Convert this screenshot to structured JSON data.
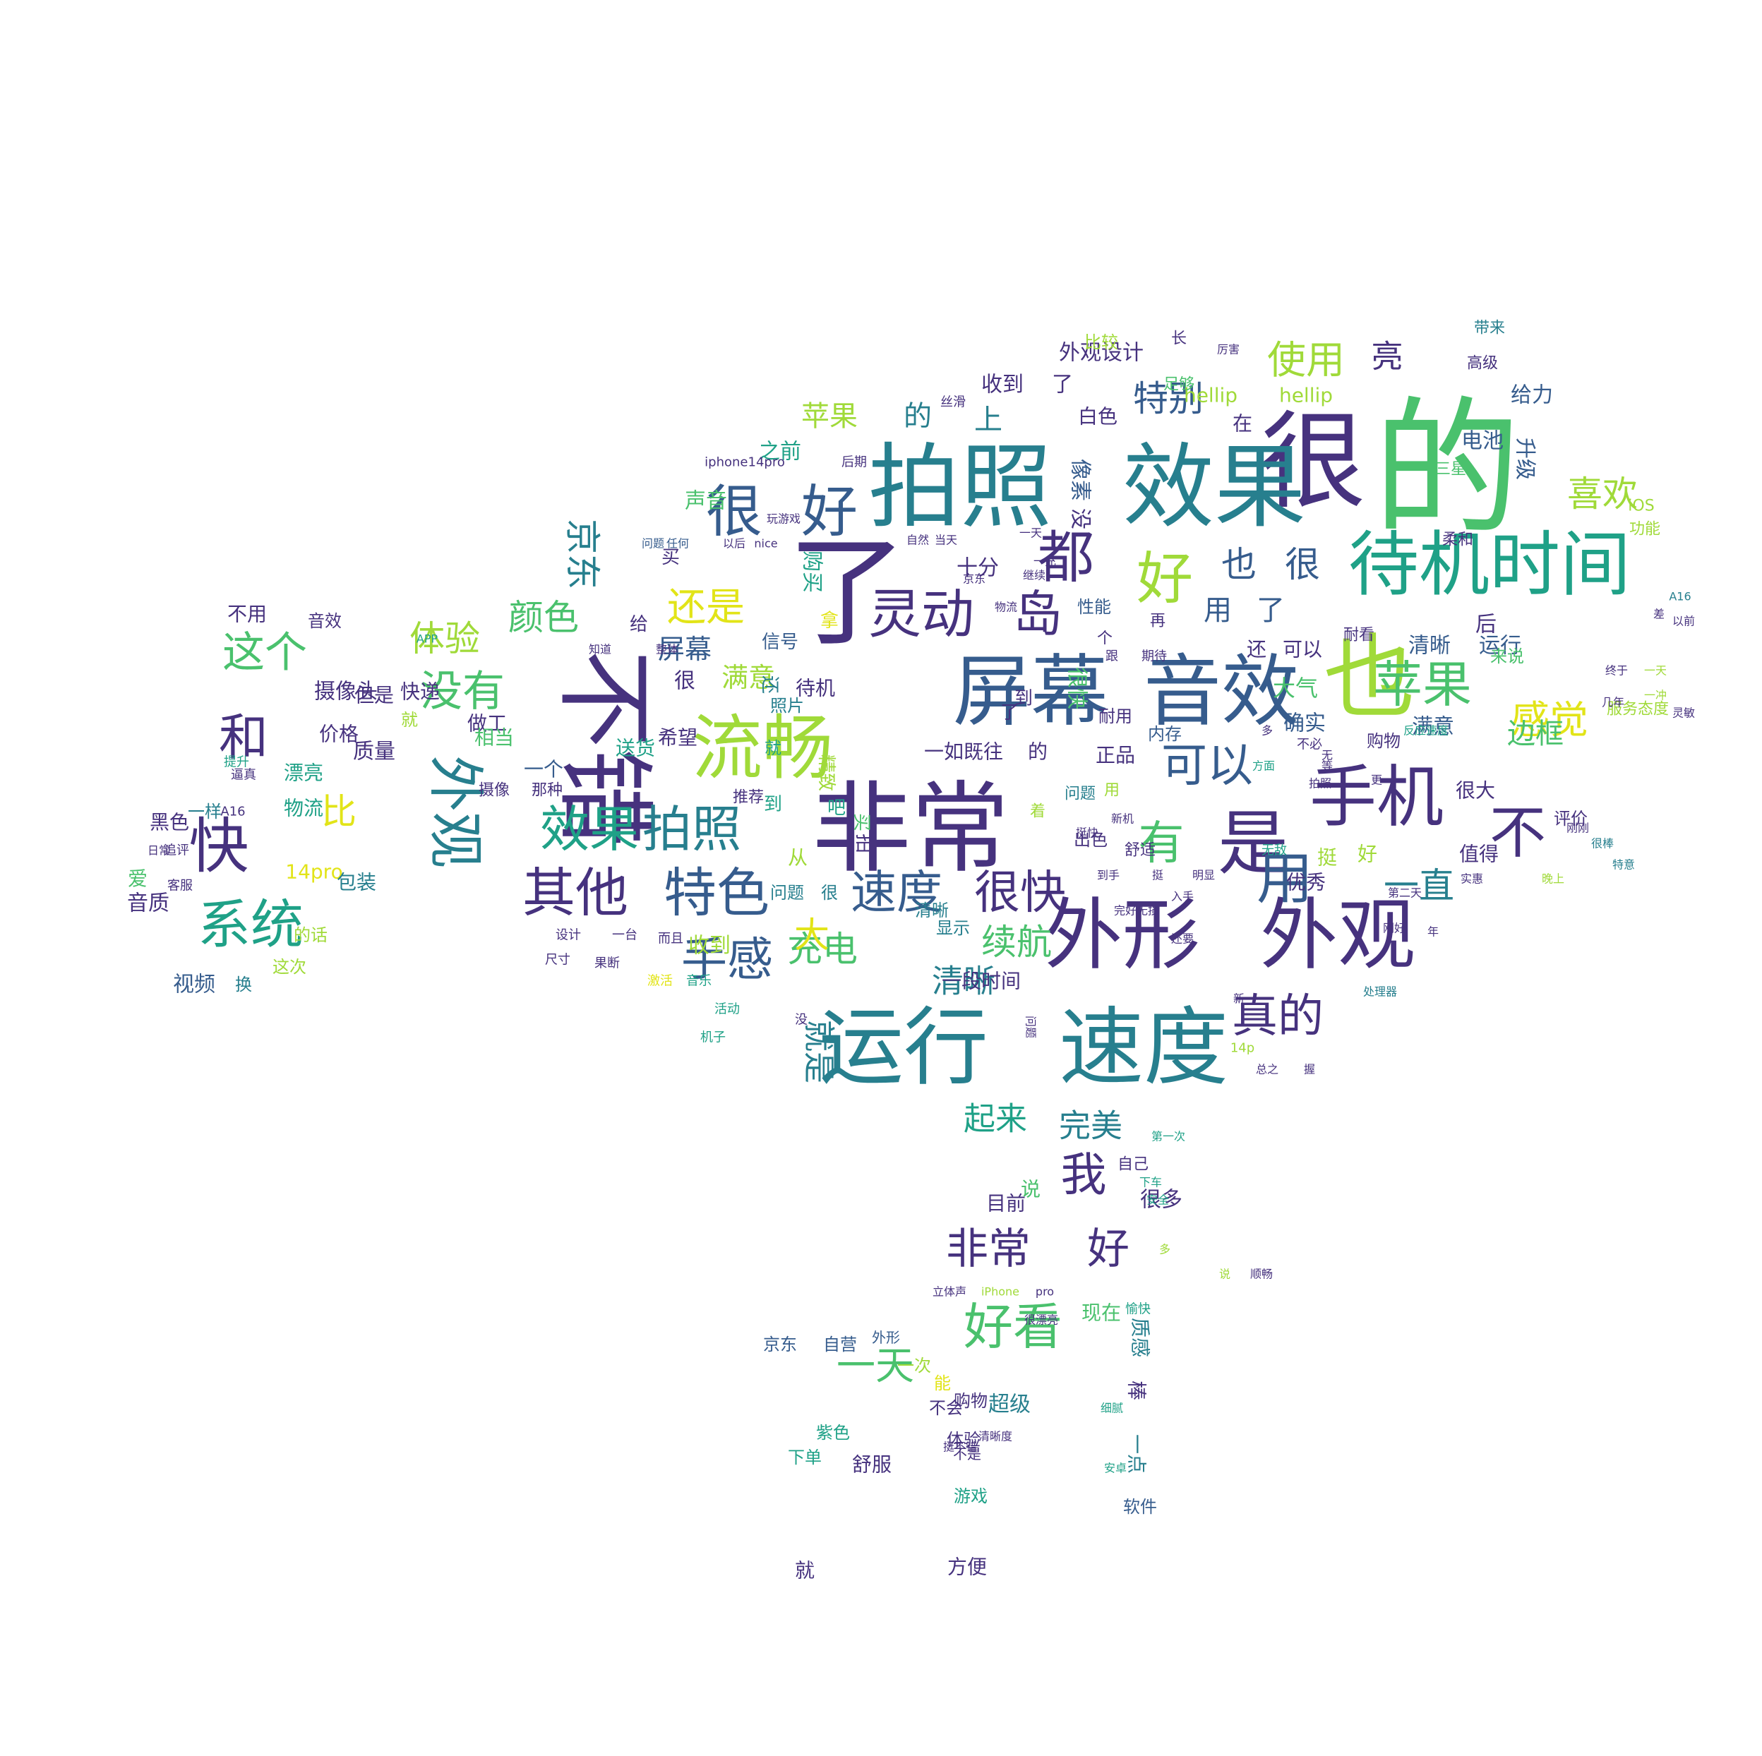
{
  "palette": {
    "dark_purple": "#46327e",
    "indigo": "#365c8d",
    "blue": "#277f8e",
    "teal": "#1fa187",
    "green": "#4ac16d",
    "lime": "#a0da39",
    "yellow": "#e2e418"
  },
  "words": [
    {
      "text": "的",
      "color": "#4ac16d"
    },
    {
      "text": "很",
      "color": "#46327e"
    },
    {
      "text": "效果",
      "color": "#277f8e"
    },
    {
      "text": "拍照",
      "color": "#277f8e"
    },
    {
      "text": "非常",
      "color": "#46327e"
    },
    {
      "text": "了",
      "color": "#46327e"
    },
    {
      "text": "不错",
      "color": "#46327e"
    },
    {
      "text": "也",
      "color": "#a0da39"
    },
    {
      "text": "屏幕",
      "color": "#365c8d"
    },
    {
      "text": "音效",
      "color": "#365c8d"
    },
    {
      "text": "待机时间",
      "color": "#1fa187"
    },
    {
      "text": "外形",
      "color": "#46327e"
    },
    {
      "text": "外观",
      "color": "#46327e"
    },
    {
      "text": "运行",
      "color": "#277f8e"
    },
    {
      "text": "速度",
      "color": "#277f8e"
    },
    {
      "text": "流畅",
      "color": "#a0da39"
    },
    {
      "text": "手机",
      "color": "#46327e"
    },
    {
      "text": "是",
      "color": "#46327e"
    },
    {
      "text": "苹果",
      "color": "#4ac16d"
    },
    {
      "text": "都",
      "color": "#46327e"
    },
    {
      "text": "好",
      "color": "#a0da39"
    },
    {
      "text": "很",
      "color": "#365c8d"
    },
    {
      "text": "好",
      "color": "#365c8d"
    },
    {
      "text": "灵动",
      "color": "#46327e"
    },
    {
      "text": "岛",
      "color": "#46327e"
    },
    {
      "text": "外观",
      "color": "#277f8e"
    },
    {
      "text": "其他",
      "color": "#46327e"
    },
    {
      "text": "特色",
      "color": "#365c8d"
    },
    {
      "text": "效果",
      "color": "#1fa187"
    },
    {
      "text": "拍照",
      "color": "#277f8e"
    },
    {
      "text": "快",
      "color": "#46327e"
    },
    {
      "text": "系统",
      "color": "#1fa187"
    },
    {
      "text": "和",
      "color": "#46327e"
    },
    {
      "text": "没有",
      "color": "#4ac16d"
    },
    {
      "text": "可以",
      "color": "#365c8d"
    },
    {
      "text": "有",
      "color": "#4ac16d"
    },
    {
      "text": "用",
      "color": "#365c8d"
    },
    {
      "text": "不",
      "color": "#46327e"
    },
    {
      "text": "速度",
      "color": "#365c8d"
    },
    {
      "text": "很快",
      "color": "#46327e"
    },
    {
      "text": "真的",
      "color": "#46327e"
    },
    {
      "text": "手感",
      "color": "#365c8d"
    },
    {
      "text": "感觉",
      "color": "#e2e418"
    },
    {
      "text": "使用",
      "color": "#a0da39"
    },
    {
      "text": "特别",
      "color": "#365c8d"
    },
    {
      "text": "喜欢",
      "color": "#a0da39"
    },
    {
      "text": "还是",
      "color": "#e2e418"
    },
    {
      "text": "这个",
      "color": "#4ac16d"
    },
    {
      "text": "非常",
      "color": "#46327e"
    },
    {
      "text": "好",
      "color": "#46327e"
    },
    {
      "text": "好看",
      "color": "#4ac16d"
    },
    {
      "text": "一天",
      "color": "#4ac16d"
    },
    {
      "text": "我",
      "color": "#46327e"
    },
    {
      "text": "充电",
      "color": "#4ac16d"
    },
    {
      "text": "续航",
      "color": "#4ac16d"
    },
    {
      "text": "清晰",
      "color": "#277f8e"
    },
    {
      "text": "就是",
      "color": "#277f8e"
    },
    {
      "text": "起来",
      "color": "#1fa187"
    },
    {
      "text": "完美",
      "color": "#277f8e"
    },
    {
      "text": "一直",
      "color": "#277f8e"
    },
    {
      "text": "比",
      "color": "#e2e418"
    },
    {
      "text": "大",
      "color": "#e2e418"
    },
    {
      "text": "颜色",
      "color": "#4ac16d"
    },
    {
      "text": "体验",
      "color": "#a0da39"
    },
    {
      "text": "京东",
      "color": "#277f8e"
    },
    {
      "text": "也",
      "color": "#365c8d"
    },
    {
      "text": "很",
      "color": "#365c8d"
    },
    {
      "text": "亮",
      "color": "#46327e"
    },
    {
      "text": "苹果",
      "color": "#a0da39"
    },
    {
      "text": "的",
      "color": "#277f8e"
    },
    {
      "text": "上",
      "color": "#277f8e"
    },
    {
      "text": "用",
      "color": "#365c8d"
    },
    {
      "text": "了",
      "color": "#365c8d"
    },
    {
      "text": "屏幕",
      "color": "#365c8d"
    },
    {
      "text": "满意",
      "color": "#a0da39"
    },
    {
      "text": "边框",
      "color": "#4ac16d"
    },
    {
      "text": "十分",
      "color": "#46327e"
    },
    {
      "text": "收到",
      "color": "#46327e"
    },
    {
      "text": "了",
      "color": "#46327e"
    },
    {
      "text": "外观设计",
      "color": "#46327e"
    },
    {
      "text": "hellip",
      "color": "#a0da39"
    },
    {
      "text": "hellip",
      "color": "#a0da39"
    },
    {
      "text": "给力",
      "color": "#365c8d"
    },
    {
      "text": "电池",
      "color": "#365c8d"
    },
    {
      "text": "升级",
      "color": "#365c8d"
    },
    {
      "text": "白色",
      "color": "#46327e"
    },
    {
      "text": "在",
      "color": "#46327e"
    },
    {
      "text": "没",
      "color": "#46327e"
    },
    {
      "text": "像素",
      "color": "#365c8d"
    },
    {
      "text": "之前",
      "color": "#1fa187"
    },
    {
      "text": "声音",
      "color": "#4ac16d"
    },
    {
      "text": "购买",
      "color": "#1fa187"
    },
    {
      "text": "清晰",
      "color": "#365c8d"
    },
    {
      "text": "运行",
      "color": "#365c8d"
    },
    {
      "text": "后",
      "color": "#46327e"
    },
    {
      "text": "还",
      "color": "#46327e"
    },
    {
      "text": "可以",
      "color": "#46327e"
    },
    {
      "text": "大气",
      "color": "#4ac16d"
    },
    {
      "text": "确实",
      "color": "#365c8d"
    },
    {
      "text": "正品",
      "color": "#46327e"
    },
    {
      "text": "一如既往",
      "color": "#46327e"
    },
    {
      "text": "的",
      "color": "#46327e"
    },
    {
      "text": "很快",
      "color": "#4ac16d"
    },
    {
      "text": "满意",
      "color": "#365c8d"
    },
    {
      "text": "很",
      "color": "#46327e"
    },
    {
      "text": "待机",
      "color": "#46327e"
    },
    {
      "text": "拍",
      "color": "#46327e"
    },
    {
      "text": "摄像头",
      "color": "#46327e"
    },
    {
      "text": "价格",
      "color": "#46327e"
    },
    {
      "text": "但是",
      "color": "#46327e"
    },
    {
      "text": "质量",
      "color": "#46327e"
    },
    {
      "text": "做工",
      "color": "#46327e"
    },
    {
      "text": "送货",
      "color": "#1fa187"
    },
    {
      "text": "希望",
      "color": "#46327e"
    },
    {
      "text": "漂亮",
      "color": "#1fa187"
    },
    {
      "text": "物流",
      "color": "#1fa187"
    },
    {
      "text": "相当",
      "color": "#4ac16d"
    },
    {
      "text": "一个",
      "color": "#365c8d"
    },
    {
      "text": "黑色",
      "color": "#46327e"
    },
    {
      "text": "一样",
      "color": "#277f8e"
    },
    {
      "text": "爱",
      "color": "#4ac16d"
    },
    {
      "text": "14pro",
      "color": "#e2e418"
    },
    {
      "text": "包装",
      "color": "#277f8e"
    },
    {
      "text": "音质",
      "color": "#46327e"
    },
    {
      "text": "的话",
      "color": "#a0da39"
    },
    {
      "text": "这次",
      "color": "#a0da39"
    },
    {
      "text": "视频",
      "color": "#365c8d"
    },
    {
      "text": "换",
      "color": "#277f8e"
    },
    {
      "text": "不用",
      "color": "#46327e"
    },
    {
      "text": "音效",
      "color": "#46327e"
    },
    {
      "text": "快递",
      "color": "#46327e"
    },
    {
      "text": "就",
      "color": "#a0da39"
    },
    {
      "text": "收到",
      "color": "#a0da39"
    },
    {
      "text": "从",
      "color": "#a0da39"
    },
    {
      "text": "问题",
      "color": "#277f8e"
    },
    {
      "text": "很",
      "color": "#277f8e"
    },
    {
      "text": "清晰",
      "color": "#277f8e"
    },
    {
      "text": "显示",
      "color": "#277f8e"
    },
    {
      "text": "一段时间",
      "color": "#46327e"
    },
    {
      "text": "说",
      "color": "#4ac16d"
    },
    {
      "text": "目前",
      "color": "#46327e"
    },
    {
      "text": "很多",
      "color": "#46327e"
    },
    {
      "text": "现在",
      "color": "#4ac16d"
    },
    {
      "text": "质感",
      "color": "#277f8e"
    },
    {
      "text": "棒",
      "color": "#46327e"
    },
    {
      "text": "一点",
      "color": "#277f8e"
    },
    {
      "text": "超级",
      "color": "#277f8e"
    },
    {
      "text": "舒服",
      "color": "#46327e"
    },
    {
      "text": "就",
      "color": "#46327e"
    },
    {
      "text": "方便",
      "color": "#46327e"
    },
    {
      "text": "优秀",
      "color": "#46327e"
    },
    {
      "text": "挺",
      "color": "#a0da39"
    },
    {
      "text": "好",
      "color": "#a0da39"
    },
    {
      "text": "值得",
      "color": "#46327e"
    },
    {
      "text": "很大",
      "color": "#46327e"
    },
    {
      "text": "评价",
      "color": "#46327e"
    },
    {
      "text": "购物",
      "color": "#46327e"
    },
    {
      "text": "京东",
      "color": "#365c8d"
    },
    {
      "text": "自营",
      "color": "#365c8d"
    },
    {
      "text": "外形",
      "color": "#365c8d"
    },
    {
      "text": "一次",
      "color": "#a0da39"
    },
    {
      "text": "能",
      "color": "#e2e418"
    },
    {
      "text": "不会",
      "color": "#46327e"
    },
    {
      "text": "购物",
      "color": "#46327e"
    },
    {
      "text": "体验",
      "color": "#46327e"
    },
    {
      "text": "不是",
      "color": "#46327e"
    },
    {
      "text": "紫色",
      "color": "#1fa187"
    },
    {
      "text": "下单",
      "color": "#1fa187"
    },
    {
      "text": "游戏",
      "color": "#1fa187"
    },
    {
      "text": "软件",
      "color": "#365c8d"
    },
    {
      "text": "自己",
      "color": "#46327e"
    },
    {
      "text": "出色",
      "color": "#46327e"
    },
    {
      "text": "到",
      "color": "#46327e"
    },
    {
      "text": "了",
      "color": "#46327e"
    },
    {
      "text": "买",
      "color": "#46327e"
    },
    {
      "text": "给",
      "color": "#46327e"
    },
    {
      "text": "拿",
      "color": "#e2e418"
    },
    {
      "text": "信号",
      "color": "#365c8d"
    },
    {
      "text": "照片",
      "color": "#277f8e"
    },
    {
      "text": "还",
      "color": "#277f8e"
    },
    {
      "text": "就",
      "color": "#1fa187"
    },
    {
      "text": "到",
      "color": "#1fa187"
    },
    {
      "text": "吧",
      "color": "#1fa187"
    },
    {
      "text": "买",
      "color": "#4ac16d"
    },
    {
      "text": "精致",
      "color": "#a0da39"
    },
    {
      "text": "推荐",
      "color": "#46327e"
    },
    {
      "text": "摄像",
      "color": "#46327e"
    },
    {
      "text": "那种",
      "color": "#46327e"
    },
    {
      "text": "问题",
      "color": "#277f8e"
    },
    {
      "text": "用",
      "color": "#a0da39"
    },
    {
      "text": "着",
      "color": "#a0da39"
    },
    {
      "text": "舒适",
      "color": "#46327e"
    },
    {
      "text": "耐用",
      "color": "#46327e"
    },
    {
      "text": "内存",
      "color": "#365c8d"
    },
    {
      "text": "个",
      "color": "#46327e"
    },
    {
      "text": "再",
      "color": "#46327e"
    },
    {
      "text": "耐看",
      "color": "#46327e"
    },
    {
      "text": "比较",
      "color": "#a0da39"
    },
    {
      "text": "性能",
      "color": "#365c8d"
    },
    {
      "text": "来说",
      "color": "#4ac16d"
    },
    {
      "text": "服务态度",
      "color": "#a0da39"
    },
    {
      "text": "功能",
      "color": "#a0da39"
    },
    {
      "text": "iOS",
      "color": "#a0da39"
    },
    {
      "text": "柔和",
      "color": "#46327e"
    },
    {
      "text": "三星",
      "color": "#4ac16d"
    },
    {
      "text": "足够",
      "color": "#4ac16d"
    },
    {
      "text": "带来",
      "color": "#277f8e"
    },
    {
      "text": "高级",
      "color": "#46327e"
    },
    {
      "text": "长",
      "color": "#46327e"
    },
    {
      "text": "厉害",
      "color": "#46327e"
    },
    {
      "text": "iphone14pro",
      "color": "#46327e"
    },
    {
      "text": "丝滑",
      "color": "#46327e"
    },
    {
      "text": "后期",
      "color": "#46327e"
    },
    {
      "text": "玩游戏",
      "color": "#46327e"
    },
    {
      "text": "自然",
      "color": "#46327e"
    },
    {
      "text": "当天",
      "color": "#46327e"
    },
    {
      "text": "一天",
      "color": "#46327e"
    },
    {
      "text": "一充",
      "color": "#46327e"
    },
    {
      "text": "继续",
      "color": "#46327e"
    },
    {
      "text": "京东",
      "color": "#46327e"
    },
    {
      "text": "物流",
      "color": "#46327e"
    },
    {
      "text": "任何",
      "color": "#365c8d"
    },
    {
      "text": "问题",
      "color": "#365c8d"
    },
    {
      "text": "以后",
      "color": "#46327e"
    },
    {
      "text": "nice",
      "color": "#46327e"
    },
    {
      "text": "APP",
      "color": "#1fa187"
    },
    {
      "text": "知道",
      "color": "#46327e"
    },
    {
      "text": "整体",
      "color": "#46327e"
    },
    {
      "text": "跟",
      "color": "#46327e"
    },
    {
      "text": "期待",
      "color": "#46327e"
    },
    {
      "text": "不必",
      "color": "#46327e"
    },
    {
      "text": "多",
      "color": "#46327e"
    },
    {
      "text": "拍照",
      "color": "#46327e"
    },
    {
      "text": "等",
      "color": "#46327e"
    },
    {
      "text": "无",
      "color": "#46327e"
    },
    {
      "text": "更",
      "color": "#46327e"
    },
    {
      "text": "反应速度",
      "color": "#1fa187"
    },
    {
      "text": "方面",
      "color": "#1fa187"
    },
    {
      "text": "无敌",
      "color": "#1fa187"
    },
    {
      "text": "新机",
      "color": "#46327e"
    },
    {
      "text": "到手",
      "color": "#46327e"
    },
    {
      "text": "挺",
      "color": "#46327e"
    },
    {
      "text": "明显",
      "color": "#46327e"
    },
    {
      "text": "完好无损",
      "color": "#46327e"
    },
    {
      "text": "入手",
      "color": "#46327e"
    },
    {
      "text": "还要",
      "color": "#46327e"
    },
    {
      "text": "刚好",
      "color": "#46327e"
    },
    {
      "text": "年",
      "color": "#46327e"
    },
    {
      "text": "第二天",
      "color": "#46327e"
    },
    {
      "text": "实惠",
      "color": "#46327e"
    },
    {
      "text": "晚上",
      "color": "#a0da39"
    },
    {
      "text": "特意",
      "color": "#277f8e"
    },
    {
      "text": "很棒",
      "color": "#277f8e"
    },
    {
      "text": "刚刚",
      "color": "#46327e"
    },
    {
      "text": "几年",
      "color": "#46327e"
    },
    {
      "text": "终于",
      "color": "#46327e"
    },
    {
      "text": "一天",
      "color": "#a0da39"
    },
    {
      "text": "一冲",
      "color": "#a0da39"
    },
    {
      "text": "灵敏",
      "color": "#46327e"
    },
    {
      "text": "以前",
      "color": "#46327e"
    },
    {
      "text": "差",
      "color": "#46327e"
    },
    {
      "text": "A16",
      "color": "#277f8e"
    },
    {
      "text": "处理器",
      "color": "#277f8e"
    },
    {
      "text": "新",
      "color": "#46327e"
    },
    {
      "text": "14p",
      "color": "#a0da39"
    },
    {
      "text": "总之",
      "color": "#46327e"
    },
    {
      "text": "握",
      "color": "#46327e"
    },
    {
      "text": "第一次",
      "color": "#1fa187"
    },
    {
      "text": "安全",
      "color": "#1fa187"
    },
    {
      "text": "下车",
      "color": "#1fa187"
    },
    {
      "text": "多",
      "color": "#a0da39"
    },
    {
      "text": "说",
      "color": "#a0da39"
    },
    {
      "text": "顺畅",
      "color": "#46327e"
    },
    {
      "text": "愉快",
      "color": "#1fa187"
    },
    {
      "text": "细腻",
      "color": "#1fa187"
    },
    {
      "text": "安卓",
      "color": "#1fa187"
    },
    {
      "text": "pro",
      "color": "#46327e"
    },
    {
      "text": "iPhone",
      "color": "#a0da39"
    },
    {
      "text": "很漂亮",
      "color": "#46327e"
    },
    {
      "text": "立体声",
      "color": "#46327e"
    },
    {
      "text": "挺不错",
      "color": "#46327e"
    },
    {
      "text": "清晰度",
      "color": "#46327e"
    },
    {
      "text": "设计",
      "color": "#46327e"
    },
    {
      "text": "一台",
      "color": "#46327e"
    },
    {
      "text": "尺寸",
      "color": "#46327e"
    },
    {
      "text": "果断",
      "color": "#46327e"
    },
    {
      "text": "而且",
      "color": "#46327e"
    },
    {
      "text": "激活",
      "color": "#e2e418"
    },
    {
      "text": "音乐",
      "color": "#1fa187"
    },
    {
      "text": "活动",
      "color": "#1fa187"
    },
    {
      "text": "机子",
      "color": "#1fa187"
    },
    {
      "text": "没",
      "color": "#46327e"
    },
    {
      "text": "问题",
      "color": "#46327e"
    },
    {
      "text": "提升",
      "color": "#1fa187"
    },
    {
      "text": "逼真",
      "color": "#46327e"
    },
    {
      "text": "A16",
      "color": "#46327e"
    },
    {
      "text": "追评",
      "color": "#46327e"
    },
    {
      "text": "客服",
      "color": "#46327e"
    },
    {
      "text": "日常",
      "color": "#46327e"
    },
    {
      "text": "挺快",
      "color": "#46327e"
    }
  ]
}
